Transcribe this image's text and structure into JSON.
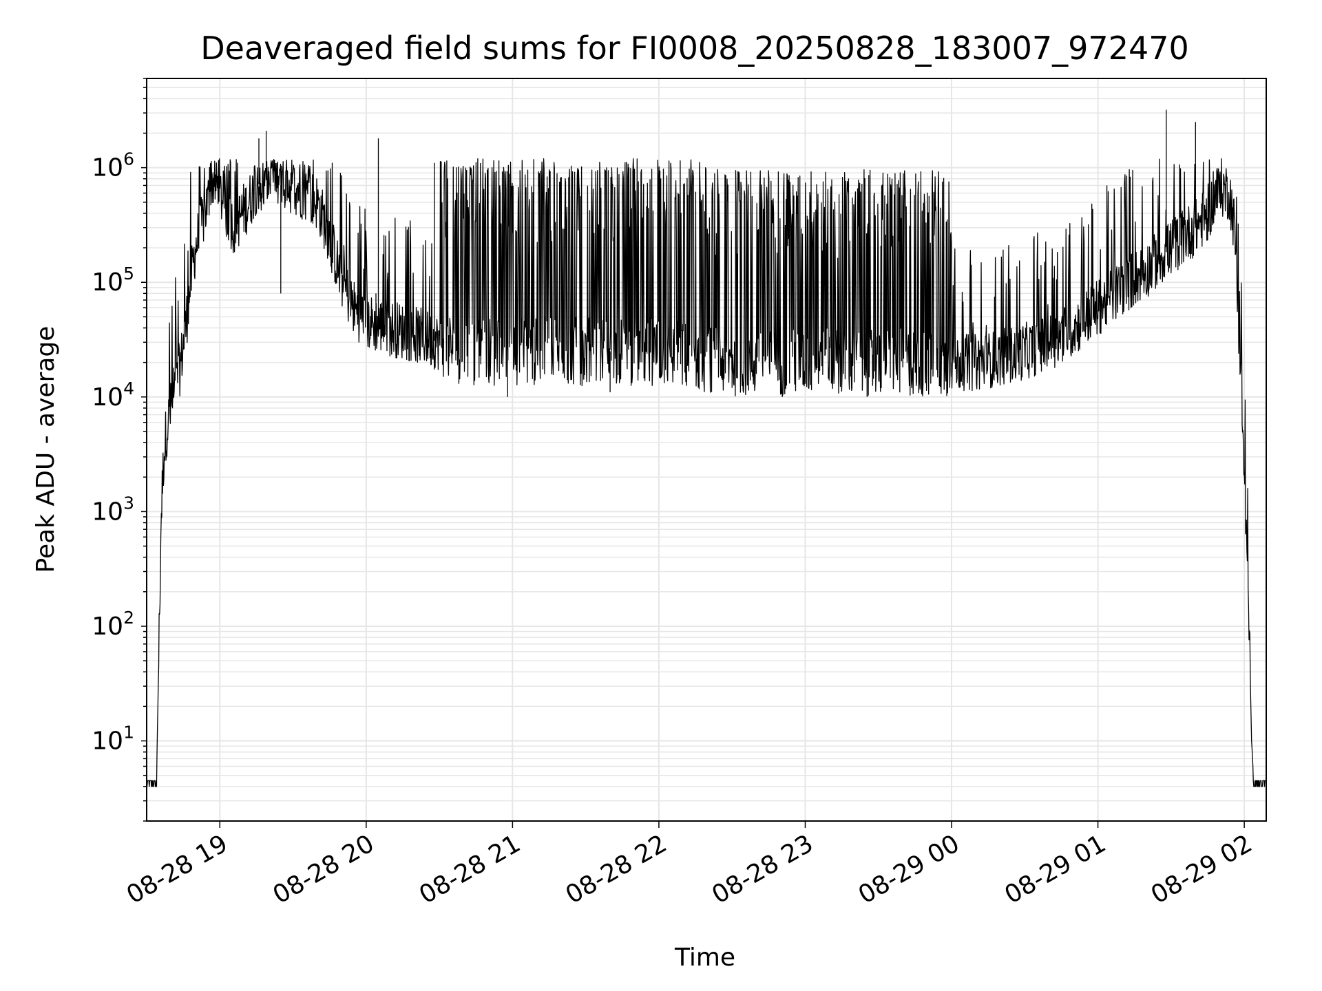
{
  "chart_data": {
    "type": "line",
    "title": "Deaveraged field sums for FI0008_20250828_183007_972470",
    "xlabel": "Time",
    "ylabel": "Peak ADU - average",
    "x_scale": "time",
    "y_scale": "log",
    "xlim": [
      "2025-08-28 18:30",
      "2025-08-29 02:09"
    ],
    "ylim": [
      2,
      6000000
    ],
    "grid": true,
    "grid_color": "#e6e6e6",
    "line_color": "#000000",
    "x_ticks": [
      {
        "label": "08-28 19",
        "time": "2025-08-28 19:00"
      },
      {
        "label": "08-28 20",
        "time": "2025-08-28 20:00"
      },
      {
        "label": "08-28 21",
        "time": "2025-08-28 21:00"
      },
      {
        "label": "08-28 22",
        "time": "2025-08-28 22:00"
      },
      {
        "label": "08-28 23",
        "time": "2025-08-28 23:00"
      },
      {
        "label": "08-29 00",
        "time": "2025-08-29 00:00"
      },
      {
        "label": "08-29 01",
        "time": "2025-08-29 01:00"
      },
      {
        "label": "08-29 02",
        "time": "2025-08-29 02:00"
      }
    ],
    "y_ticks": [
      {
        "base": "10",
        "exp": "1",
        "value": 10
      },
      {
        "base": "10",
        "exp": "2",
        "value": 100
      },
      {
        "base": "10",
        "exp": "3",
        "value": 1000
      },
      {
        "base": "10",
        "exp": "4",
        "value": 10000
      },
      {
        "base": "10",
        "exp": "5",
        "value": 100000
      },
      {
        "base": "10",
        "exp": "6",
        "value": 1000000
      }
    ],
    "series": [
      {
        "x": [
          "2025-08-28 18:30",
          "2025-08-28 18:33",
          "2025-08-28 18:34",
          "2025-08-28 18:35",
          "2025-08-28 18:36",
          "2025-08-28 18:37",
          "2025-08-28 18:38",
          "2025-08-28 18:40",
          "2025-08-28 18:42",
          "2025-08-28 18:44",
          "2025-08-28 18:46",
          "2025-08-28 18:48",
          "2025-08-28 18:50",
          "2025-08-28 18:53",
          "2025-08-28 18:55",
          "2025-08-28 18:57",
          "2025-08-28 19:00",
          "2025-08-28 19:03",
          "2025-08-28 19:06",
          "2025-08-28 19:09",
          "2025-08-28 19:12",
          "2025-08-28 19:15",
          "2025-08-28 19:20",
          "2025-08-28 19:25",
          "2025-08-28 19:30",
          "2025-08-28 19:35",
          "2025-08-28 19:40",
          "2025-08-28 19:45",
          "2025-08-28 19:50",
          "2025-08-28 19:55",
          "2025-08-28 20:00",
          "2025-08-28 20:10",
          "2025-08-28 20:20",
          "2025-08-28 20:30",
          "2025-08-28 20:40",
          "2025-08-28 20:50",
          "2025-08-28 21:00",
          "2025-08-28 21:15",
          "2025-08-28 21:30",
          "2025-08-28 21:45",
          "2025-08-28 22:00",
          "2025-08-28 22:15",
          "2025-08-28 22:30",
          "2025-08-28 22:45",
          "2025-08-28 23:00",
          "2025-08-28 23:15",
          "2025-08-28 23:30",
          "2025-08-28 23:45",
          "2025-08-29 00:00",
          "2025-08-29 00:10",
          "2025-08-29 00:20",
          "2025-08-29 00:30",
          "2025-08-29 00:40",
          "2025-08-29 00:50",
          "2025-08-29 01:00",
          "2025-08-29 01:10",
          "2025-08-29 01:20",
          "2025-08-29 01:30",
          "2025-08-29 01:35",
          "2025-08-29 01:40",
          "2025-08-29 01:45",
          "2025-08-29 01:48",
          "2025-08-29 01:51",
          "2025-08-29 01:54",
          "2025-08-29 01:56",
          "2025-08-29 01:58",
          "2025-08-29 02:00",
          "2025-08-29 02:02",
          "2025-08-29 02:03",
          "2025-08-29 02:04",
          "2025-08-29 02:09"
        ],
        "y": [
          4,
          4,
          4,
          60,
          1000,
          3000,
          5000,
          8000,
          12000,
          20000,
          40000,
          100000,
          200000,
          350000,
          500000,
          800000,
          600000,
          400000,
          300000,
          400000,
          500000,
          700000,
          800000,
          700000,
          700000,
          600000,
          500000,
          250000,
          100000,
          60000,
          45000,
          40000,
          35000,
          30000,
          25000,
          25000,
          25000,
          25000,
          25000,
          25000,
          25000,
          22000,
          20000,
          20000,
          20000,
          20000,
          20000,
          20000,
          20000,
          20000,
          22000,
          25000,
          30000,
          40000,
          60000,
          90000,
          130000,
          200000,
          250000,
          300000,
          400000,
          550000,
          650000,
          600000,
          300000,
          30000,
          2000,
          100,
          10,
          4,
          4
        ],
        "spikes": [
          {
            "x": "2025-08-28 18:41",
            "y": 18000
          },
          {
            "x": "2025-08-28 19:16",
            "y": 1800000
          },
          {
            "x": "2025-08-28 19:19",
            "y": 2100000
          },
          {
            "x": "2025-08-28 19:25",
            "y": 80000
          },
          {
            "x": "2025-08-28 20:04",
            "y": 80000
          },
          {
            "x": "2025-08-28 20:05",
            "y": 1800000
          },
          {
            "x": "2025-08-28 20:28",
            "y": 1100000
          },
          {
            "x": "2025-08-28 20:58",
            "y": 10000
          },
          {
            "x": "2025-08-28 21:40",
            "y": 11000
          },
          {
            "x": "2025-08-28 22:30",
            "y": 12000
          },
          {
            "x": "2025-08-28 23:00",
            "y": 13000
          },
          {
            "x": "2025-08-29 00:00",
            "y": 15000
          },
          {
            "x": "2025-08-29 01:28",
            "y": 3200000
          },
          {
            "x": "2025-08-29 01:40",
            "y": 2500000
          }
        ]
      }
    ]
  }
}
